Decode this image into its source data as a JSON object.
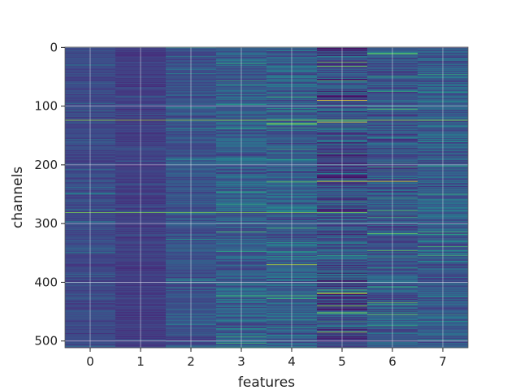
{
  "chart_data": {
    "type": "heatmap",
    "title": "",
    "xlabel": "features",
    "ylabel": "channels",
    "x_categories": [
      0,
      1,
      2,
      3,
      4,
      5,
      6,
      7
    ],
    "xlim": [
      -0.5,
      7.5
    ],
    "ylim": [
      511.5,
      -0.5
    ],
    "y_ticks": [
      0,
      100,
      200,
      300,
      400,
      500
    ],
    "y_inverted": true,
    "n_rows": 512,
    "n_cols": 8,
    "colormap": "viridis",
    "grid": true,
    "value_range": [
      0,
      1
    ],
    "column_profiles": [
      {
        "feature": 0,
        "mean_level": 0.22,
        "spread": 0.07
      },
      {
        "feature": 1,
        "mean_level": 0.18,
        "spread": 0.05
      },
      {
        "feature": 2,
        "mean_level": 0.25,
        "spread": 0.09
      },
      {
        "feature": 3,
        "mean_level": 0.3,
        "spread": 0.14
      },
      {
        "feature": 4,
        "mean_level": 0.3,
        "spread": 0.15
      },
      {
        "feature": 5,
        "mean_level": 0.24,
        "spread": 0.2
      },
      {
        "feature": 6,
        "mean_level": 0.27,
        "spread": 0.16
      },
      {
        "feature": 7,
        "mean_level": 0.29,
        "spread": 0.15
      }
    ],
    "highlighted_channels": [
      {
        "channel": 124,
        "features": [
          0,
          1,
          2,
          3,
          4,
          5,
          6,
          7
        ],
        "level": 0.85
      },
      {
        "channel": 281,
        "features": [
          0,
          1,
          2,
          3,
          4,
          5
        ],
        "level": 0.8
      },
      {
        "channel": 90,
        "features": [
          5
        ],
        "level": 1.0
      },
      {
        "channel": 127,
        "features": [
          5
        ],
        "level": 1.0
      },
      {
        "channel": 228,
        "features": [
          5,
          6
        ],
        "level": 0.95
      },
      {
        "channel": 419,
        "features": [
          5
        ],
        "level": 0.95
      },
      {
        "channel": 130,
        "features": [
          4
        ],
        "level": 0.9
      },
      {
        "channel": 370,
        "features": [
          4
        ],
        "level": 0.9
      }
    ]
  },
  "colors": {
    "background": "#ffffff",
    "text": "#222222"
  }
}
